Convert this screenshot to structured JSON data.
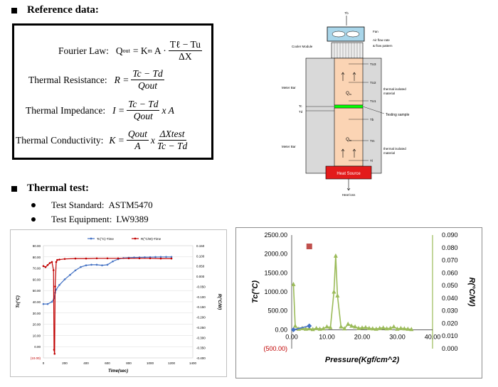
{
  "reference": {
    "heading": "Reference data:",
    "fourier_label": "Fourier Law:",
    "fourier_lhs": "Q",
    "fourier_lhs_sub": "out",
    "fourier_mid": "= K",
    "fourier_mid_sub": "m",
    "fourier_a": "A ·",
    "fourier_num": "Tℓ − Tu",
    "fourier_den": "ΔX",
    "resistance_label": "Thermal Resistance:",
    "resistance_lhs": "R =",
    "resistance_num": "Tc − Td",
    "resistance_den": "Qout",
    "impedance_label": "Thermal Impedance:",
    "impedance_lhs": "I =",
    "impedance_num": "Tc − Td",
    "impedance_den": "Qout",
    "impedance_tail": "x A",
    "conductivity_label": "Thermal Conductivity:",
    "conductivity_lhs": "K =",
    "conductivity_num1": "Qout",
    "conductivity_den1": "A",
    "conductivity_x": "x",
    "conductivity_num2": "ΔXtest",
    "conductivity_den2": "Tc − Td"
  },
  "diagram": {
    "fan_top": "Tb",
    "fan_label": "Fan",
    "cooler_label": "Cooler Module",
    "airflow_label": "Air flow rate",
    "airflow_label2": "& flow pattern",
    "meter_bar_top": "Meter Bar",
    "meter_bar_bottom": "Meter Bar",
    "insul_top": "thermal isolated",
    "insul_top2": "material",
    "insul_bottom": "thermal isolated",
    "insul_bottom2": "material",
    "sample_label": "Testing sample",
    "q_top": "Q",
    "q_top_sub": "in",
    "q_bottom": "Q",
    "q_bottom_sub": "in",
    "probes_top": [
      "TU3",
      "TU2",
      "TU1"
    ],
    "probes_bottom": [
      "Tb",
      "Tm",
      "Tl"
    ],
    "tc": "Tc",
    "td": "Td",
    "heat_source": "Heat Source",
    "heat_loss": "Heat loss"
  },
  "thermal": {
    "heading": "Thermal test:",
    "standard_label": "Test Standard:",
    "standard_value": "ASTM5470",
    "equipment_label": "Test Equipment:",
    "equipment_value": "LW9389"
  },
  "chart_data": [
    {
      "type": "line",
      "legend": [
        "Tc(°C)-Time",
        "R(°C/W)-Time"
      ],
      "legend_position": "top",
      "xlabel": "Time(sec)",
      "ylabel_left": "Tc(°C)",
      "ylabel_right": "R(°C/W)",
      "x_ticks": [
        "0",
        "200",
        "400",
        "600",
        "800",
        "1000",
        "1200",
        "1400"
      ],
      "y_left_ticks": [
        "90.00",
        "80.00",
        "70.00",
        "60.00",
        "50.00",
        "40.00",
        "30.00",
        "20.00",
        "10.00",
        "0.00",
        "(10.00)"
      ],
      "y_right_ticks": [
        "0.150",
        "0.100",
        "0.050",
        "0.000",
        "-0.050",
        "-0.100",
        "-0.150",
        "-0.200",
        "-0.250",
        "-0.300",
        "-0.350",
        "-0.400"
      ],
      "xlim": [
        0,
        1400
      ],
      "ylim_left": [
        -10,
        90
      ],
      "ylim_right": [
        -0.4,
        0.15
      ],
      "grid": true,
      "series": [
        {
          "name": "Tc(°C)-Time",
          "color": "#4472c4",
          "x": [
            0,
            40,
            80,
            100,
            110,
            120,
            150,
            200,
            250,
            300,
            350,
            400,
            450,
            500,
            550,
            600,
            650,
            700,
            750,
            800,
            850,
            900,
            950,
            1000,
            1050,
            1100,
            1150,
            1200
          ],
          "y": [
            38,
            38,
            40,
            43,
            48,
            51,
            55,
            60,
            64,
            68,
            71,
            72.5,
            73,
            73,
            72.5,
            73,
            76,
            78,
            79,
            79.3,
            79.5,
            79.6,
            79.7,
            79.8,
            79.9,
            80,
            80,
            80
          ]
        },
        {
          "name": "R(°C/W)-Time",
          "color": "#c00000",
          "x": [
            0,
            20,
            40,
            60,
            80,
            95,
            100,
            105,
            110,
            120,
            130,
            150,
            200,
            300,
            400,
            500,
            600,
            700,
            800,
            900,
            1000,
            1100,
            1200
          ],
          "y": [
            0.05,
            0.045,
            0.055,
            0.065,
            0.07,
            0.03,
            -0.36,
            -0.38,
            -0.05,
            0.07,
            0.08,
            0.082,
            0.085,
            0.087,
            0.087,
            0.088,
            0.088,
            0.088,
            0.088,
            0.088,
            0.088,
            0.087,
            0.087
          ]
        }
      ]
    },
    {
      "type": "line",
      "xlabel": "Pressure(Kgf/cm^2)",
      "ylabel_left": "Tc(°C)",
      "ylabel_right": "R(°C/W)",
      "x_ticks": [
        "0.00",
        "10.00",
        "20.00",
        "30.00",
        "40.00"
      ],
      "y_left_ticks": [
        "2500.00",
        "2000.00",
        "1500.00",
        "1000.00",
        "500.00",
        "0.00",
        "(500.00)"
      ],
      "y_right_ticks": [
        "0.090",
        "0.080",
        "0.070",
        "0.060",
        "0.050",
        "0.040",
        "0.030",
        "0.020",
        "0.010",
        "0.000"
      ],
      "xlim": [
        0,
        40
      ],
      "ylim_left": [
        -500,
        2500
      ],
      "ylim_right": [
        0,
        0.09
      ],
      "grid": false,
      "series": [
        {
          "name": "",
          "color": "#9bbb59",
          "marker": "triangle",
          "x": [
            0.5,
            1,
            2,
            3,
            4,
            5,
            6,
            7,
            8,
            9,
            10,
            11,
            12,
            12.5,
            13,
            14,
            15,
            16,
            17,
            18,
            19,
            20,
            21,
            22,
            23,
            24,
            25,
            26,
            27,
            28,
            29,
            30,
            31,
            32,
            33,
            34
          ],
          "y": [
            1200,
            100,
            20,
            40,
            20,
            30,
            10,
            40,
            20,
            30,
            80,
            60,
            1000,
            1950,
            900,
            80,
            30,
            150,
            100,
            80,
            40,
            50,
            60,
            40,
            30,
            20,
            40,
            50,
            30,
            40,
            80,
            20,
            40,
            30,
            20,
            10
          ]
        },
        {
          "name": "",
          "color": "#4472c4",
          "marker": "diamond",
          "x": [
            0.5,
            5
          ],
          "y": [
            0,
            100
          ]
        },
        {
          "name": "",
          "color": "#c0504d",
          "marker": "square",
          "x": [
            5
          ],
          "y": [
            2200
          ]
        }
      ]
    }
  ]
}
